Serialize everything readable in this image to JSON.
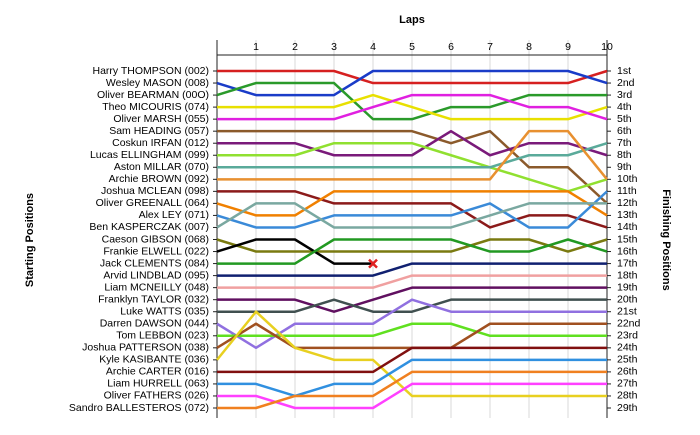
{
  "chart_data": {
    "type": "lap",
    "title": "Laps",
    "y_label": "Starting Positions",
    "y2_label": "Finishing Positions",
    "x": [
      0,
      1,
      2,
      3,
      4,
      5,
      6,
      7,
      8,
      9,
      10
    ],
    "xlim": [
      0,
      10
    ],
    "xticks": [
      1,
      2,
      3,
      4,
      5,
      6,
      7,
      8,
      9,
      10
    ],
    "ylim": [
      1,
      29
    ],
    "grid": true,
    "y2ticks": [
      {
        "value": 1,
        "label": "1st"
      },
      {
        "value": 2,
        "label": "2nd"
      },
      {
        "value": 3,
        "label": "3rd"
      },
      {
        "value": 4,
        "label": "4th"
      },
      {
        "value": 5,
        "label": "5th"
      },
      {
        "value": 6,
        "label": "6th"
      },
      {
        "value": 7,
        "label": "7th"
      },
      {
        "value": 8,
        "label": "8th"
      },
      {
        "value": 9,
        "label": "9th"
      },
      {
        "value": 10,
        "label": "10th"
      },
      {
        "value": 11,
        "label": "11th"
      },
      {
        "value": 12,
        "label": "12th"
      },
      {
        "value": 13,
        "label": "13th"
      },
      {
        "value": 14,
        "label": "14th"
      },
      {
        "value": 15,
        "label": "15th"
      },
      {
        "value": 16,
        "label": "16th"
      },
      {
        "value": 17,
        "label": "17th"
      },
      {
        "value": 18,
        "label": "18th"
      },
      {
        "value": 19,
        "label": "19th"
      },
      {
        "value": 20,
        "label": "20th"
      },
      {
        "value": 21,
        "label": "21st"
      },
      {
        "value": 22,
        "label": "22nd"
      },
      {
        "value": 23,
        "label": "23rd"
      },
      {
        "value": 24,
        "label": "24th"
      },
      {
        "value": 25,
        "label": "25th"
      },
      {
        "value": 26,
        "label": "26th"
      },
      {
        "value": 27,
        "label": "27th"
      },
      {
        "value": 28,
        "label": "28th"
      },
      {
        "value": 29,
        "label": "29th"
      }
    ],
    "series": [
      {
        "name": "Harry THOMPSON (002)",
        "color": "#d62020",
        "values": [
          1,
          1,
          1,
          1,
          2,
          2,
          2,
          2,
          2,
          2,
          1
        ]
      },
      {
        "name": "Wesley MASON (008)",
        "color": "#1a3cc8",
        "values": [
          2,
          3,
          3,
          3,
          1,
          1,
          1,
          1,
          1,
          1,
          2
        ]
      },
      {
        "name": "Oliver BEARMAN (00O)",
        "color": "#2a9a2a",
        "values": [
          3,
          2,
          2,
          2,
          5,
          5,
          4,
          4,
          3,
          3,
          3
        ]
      },
      {
        "name": "Theo MICOURIS (074)",
        "color": "#e8e000",
        "values": [
          4,
          4,
          4,
          4,
          3,
          4,
          5,
          5,
          5,
          5,
          4
        ]
      },
      {
        "name": "Oliver MARSH (055)",
        "color": "#e020e0",
        "values": [
          5,
          5,
          5,
          5,
          4,
          3,
          3,
          3,
          4,
          4,
          5
        ]
      },
      {
        "name": "Sam HEADING (057)",
        "color": "#8b5a2b",
        "values": [
          6,
          6,
          6,
          6,
          6,
          6,
          7,
          6,
          9,
          9,
          12
        ]
      },
      {
        "name": "Coskun  IRFAN (012)",
        "color": "#7a1a7a",
        "values": [
          7,
          7,
          7,
          8,
          8,
          8,
          6,
          8,
          7,
          7,
          8
        ]
      },
      {
        "name": "Lucas ELLINGHAM (099)",
        "color": "#90e030",
        "values": [
          8,
          8,
          8,
          7,
          7,
          7,
          8,
          9,
          10,
          11,
          10
        ]
      },
      {
        "name": "Aston  MILLAR (070)",
        "color": "#5aaa9a",
        "values": [
          9,
          9,
          9,
          9,
          9,
          9,
          9,
          9,
          8,
          8,
          7
        ]
      },
      {
        "name": "Archie BROWN (092)",
        "color": "#e89030",
        "values": [
          10,
          10,
          10,
          10,
          10,
          10,
          10,
          10,
          6,
          6,
          10
        ]
      },
      {
        "name": "Joshua MCLEAN (098)",
        "color": "#8b1a1a",
        "values": [
          11,
          11,
          11,
          12,
          12,
          12,
          12,
          14,
          13,
          13,
          14
        ]
      },
      {
        "name": "Oliver GREENALL (064)",
        "color": "#f08000",
        "values": [
          12,
          13,
          13,
          11,
          11,
          11,
          11,
          11,
          11,
          11,
          13
        ]
      },
      {
        "name": "Alex LEY (071)",
        "color": "#3a8ad8",
        "values": [
          13,
          14,
          14,
          13,
          13,
          13,
          13,
          12,
          14,
          14,
          11
        ]
      },
      {
        "name": "Ben KASPERCZAK (007)",
        "color": "#7aa8a0",
        "values": [
          14,
          12,
          12,
          14,
          14,
          14,
          14,
          13,
          12,
          12,
          12
        ]
      },
      {
        "name": "Caeson GIBSON (068)",
        "color": "#7a7a10",
        "values": [
          15,
          16,
          16,
          16,
          16,
          16,
          16,
          15,
          15,
          16,
          15
        ]
      },
      {
        "name": "Frankie ELWELL (022)",
        "color": "#000000",
        "retired": true,
        "values": [
          16,
          15,
          15,
          17,
          17,
          null,
          null,
          null,
          null,
          null,
          null
        ]
      },
      {
        "name": "Jack CLEMENTS (084)",
        "color": "#229922",
        "values": [
          17,
          17,
          17,
          15,
          15,
          15,
          15,
          16,
          16,
          15,
          16
        ]
      },
      {
        "name": "Arvid LINDBLAD (095)",
        "color": "#102070",
        "values": [
          18,
          18,
          18,
          18,
          18,
          17,
          17,
          17,
          17,
          17,
          17
        ]
      },
      {
        "name": "Liam MCNEILLY (048)",
        "color": "#f0a0a0",
        "values": [
          19,
          19,
          19,
          19,
          19,
          18,
          18,
          18,
          18,
          18,
          18
        ]
      },
      {
        "name": "Franklyn  TAYLOR (032)",
        "color": "#601060",
        "values": [
          20,
          20,
          20,
          21,
          20,
          19,
          19,
          19,
          19,
          19,
          19
        ]
      },
      {
        "name": "Luke  WATTS (035)",
        "color": "#405050",
        "values": [
          21,
          21,
          21,
          20,
          21,
          21,
          20,
          20,
          20,
          20,
          20
        ]
      },
      {
        "name": "Darren DAWSON (044)",
        "color": "#9070e0",
        "values": [
          22,
          24,
          22,
          22,
          22,
          20,
          21,
          21,
          21,
          21,
          21
        ]
      },
      {
        "name": "Tom LEBBON (023)",
        "color": "#60e020",
        "values": [
          23,
          23,
          23,
          23,
          23,
          22,
          22,
          23,
          23,
          23,
          23
        ]
      },
      {
        "name": "Joshua PATTERSON (038)",
        "color": "#a05020",
        "values": [
          24,
          22,
          24,
          24,
          24,
          24,
          24,
          22,
          22,
          22,
          22
        ]
      },
      {
        "name": "Kyle  KASIBANTE (036)",
        "color": "#e8d020",
        "values": [
          25,
          21,
          24,
          25,
          25,
          28,
          28,
          28,
          28,
          28,
          28
        ]
      },
      {
        "name": "Archie CARTER (016)",
        "color": "#801010",
        "values": [
          26,
          26,
          26,
          26,
          26,
          24,
          24,
          24,
          24,
          24,
          24
        ]
      },
      {
        "name": "Liam HURRELL (063)",
        "color": "#3090e0",
        "values": [
          27,
          27,
          28,
          27,
          27,
          25,
          25,
          25,
          25,
          25,
          25
        ]
      },
      {
        "name": "Oliver FATHERS (026)",
        "color": "#ff40ff",
        "values": [
          28,
          28,
          29,
          29,
          29,
          27,
          27,
          27,
          27,
          27,
          27
        ]
      },
      {
        "name": "Sandro BALLESTEROS (072)",
        "color": "#f08020",
        "values": [
          29,
          29,
          28,
          28,
          28,
          26,
          26,
          26,
          26,
          26,
          26
        ]
      }
    ]
  }
}
